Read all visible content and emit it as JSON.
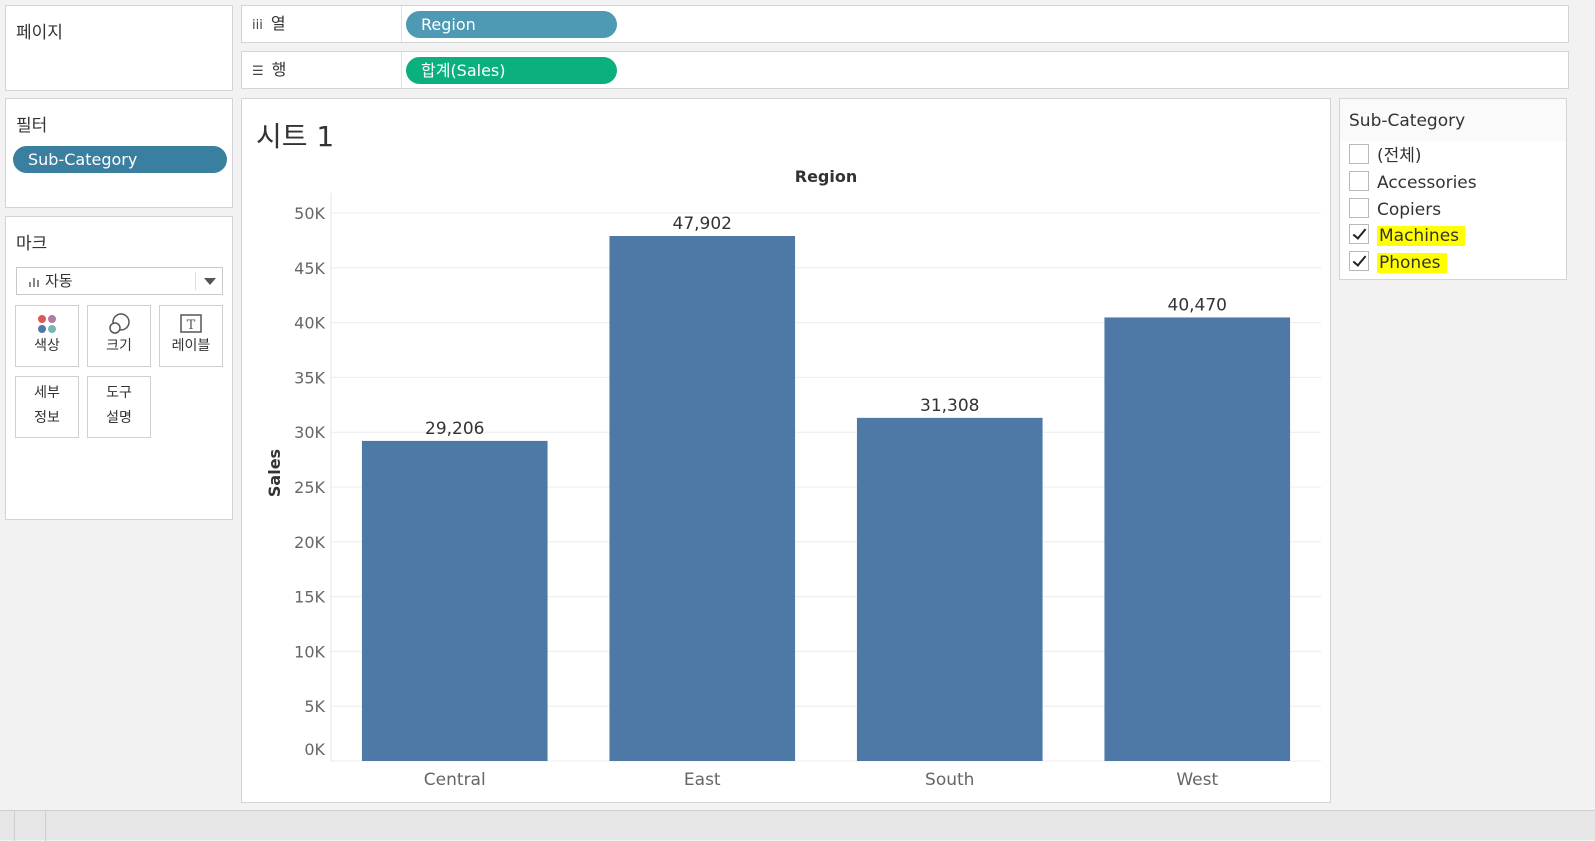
{
  "pages": {
    "title": "페이지"
  },
  "filters": {
    "title": "필터",
    "pill": "Sub-Category"
  },
  "marks": {
    "title": "마크",
    "type": "자동",
    "buttons": [
      {
        "label": "색상",
        "icon": "color-icon"
      },
      {
        "label": "크기",
        "icon": "size-icon"
      },
      {
        "label": "레이블",
        "icon": "label-icon"
      },
      {
        "label": "세부\n정보",
        "line1": "세부",
        "line2": "정보",
        "icon": "detail-icon"
      },
      {
        "label": "도구\n설명",
        "line1": "도구",
        "line2": "설명",
        "icon": "tooltip-icon"
      }
    ]
  },
  "shelves": {
    "columns_label": "열",
    "columns_pill": "Region",
    "rows_label": "행",
    "rows_pill": "합계(Sales)"
  },
  "view": {
    "sheet_title": "시트 1"
  },
  "legend": {
    "title": "Sub-Category",
    "items": [
      {
        "label": "(전체)",
        "checked": false,
        "highlight": false
      },
      {
        "label": "Accessories",
        "checked": false,
        "highlight": false
      },
      {
        "label": "Copiers",
        "checked": false,
        "highlight": false
      },
      {
        "label": "Machines",
        "checked": true,
        "highlight": true
      },
      {
        "label": "Phones",
        "checked": true,
        "highlight": true
      }
    ]
  },
  "colors": {
    "bar": "#4e79a7",
    "region_pill": "#4e9ab4",
    "sales_pill": "#0bb07f",
    "filter_pill": "#3a7ea0",
    "highlight": "#ffff00"
  },
  "chart_data": {
    "type": "bar",
    "title": "Region",
    "xlabel": "",
    "ylabel": "Sales",
    "categories": [
      "Central",
      "East",
      "South",
      "West"
    ],
    "values": [
      29206,
      47902,
      31308,
      40470
    ],
    "data_labels": [
      "29,206",
      "47,902",
      "31,308",
      "40,470"
    ],
    "ylim": [
      0,
      50000
    ],
    "yticks": [
      0,
      5000,
      10000,
      15000,
      20000,
      25000,
      30000,
      35000,
      40000,
      45000,
      50000
    ],
    "ytick_labels": [
      "0K",
      "5K",
      "10K",
      "15K",
      "20K",
      "25K",
      "30K",
      "35K",
      "40K",
      "45K",
      "50K"
    ],
    "grid": true
  }
}
